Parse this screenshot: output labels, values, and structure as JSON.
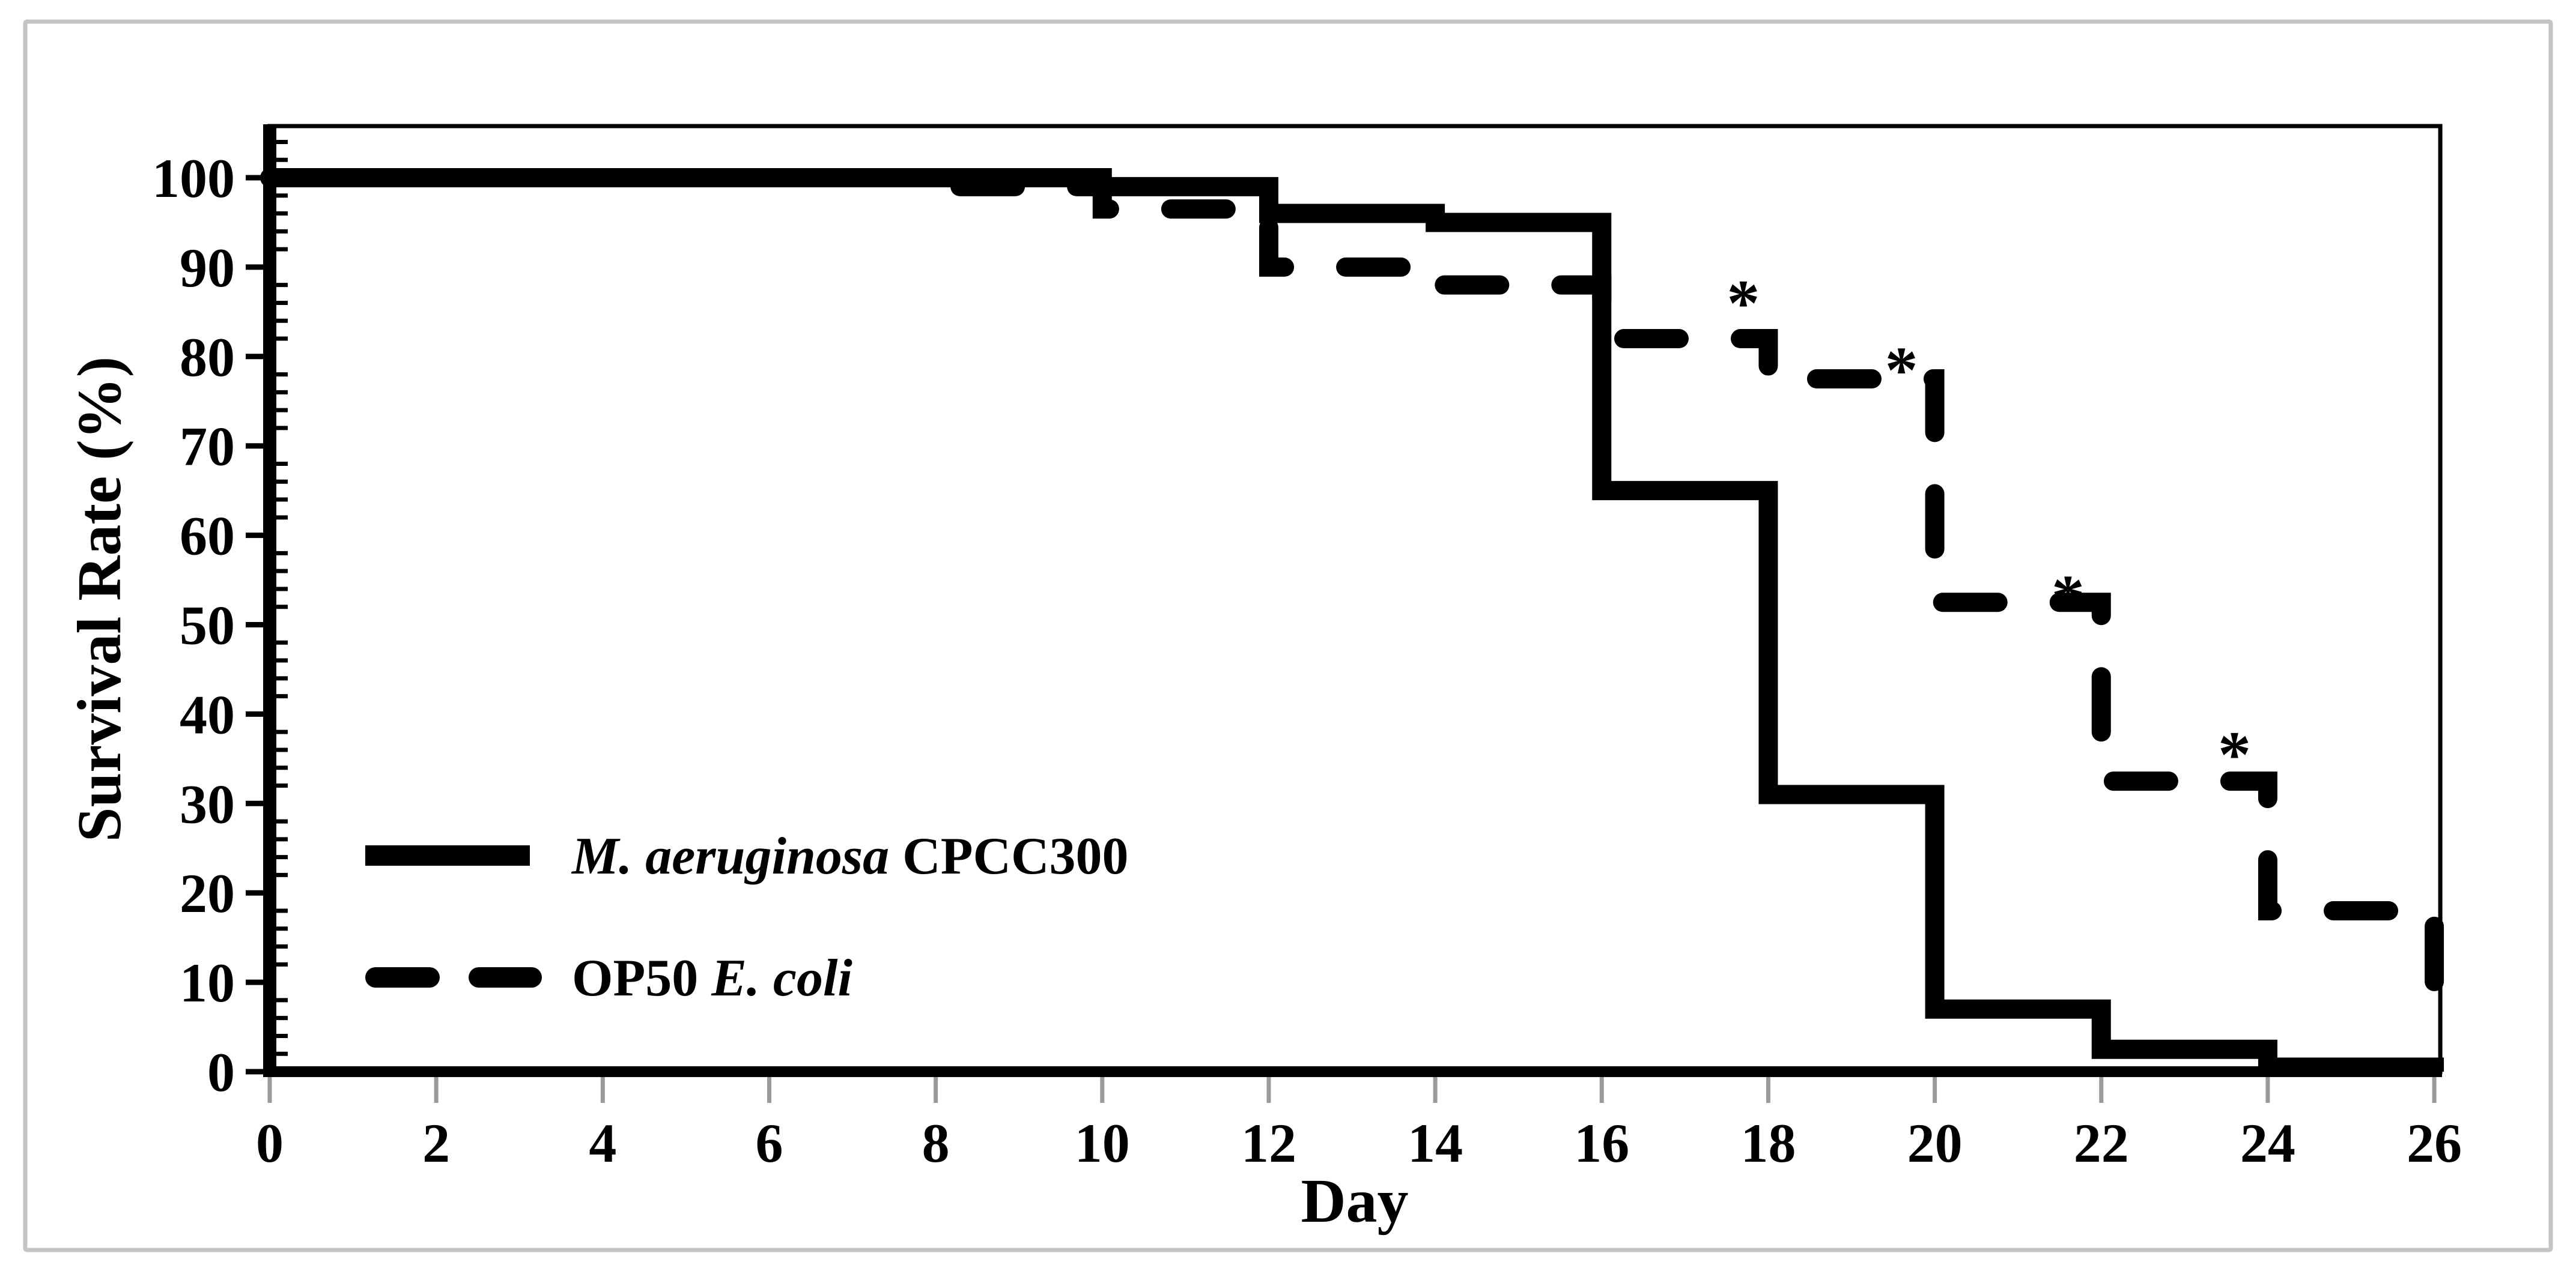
{
  "figure": {
    "background": "#ffffff",
    "border_color": "#c4c4c4",
    "axis_color": "#000000",
    "x_tick_color": "#9a9a9a"
  },
  "chart_data": {
    "type": "line",
    "subtype": "kaplan-meier-step-survival",
    "title": "",
    "xlabel": "Day",
    "ylabel": "Survival Rate (%)",
    "xlim": [
      0,
      26
    ],
    "ylim": [
      0,
      106
    ],
    "grid": false,
    "legend_position": "lower-left-inside",
    "x_ticks": [
      0,
      2,
      4,
      6,
      8,
      10,
      12,
      14,
      16,
      18,
      20,
      22,
      24,
      26
    ],
    "y_ticks": [
      0,
      10,
      20,
      30,
      40,
      50,
      60,
      70,
      80,
      90,
      100
    ],
    "y_minor_tick_step": 2,
    "series": [
      {
        "name": "M. aeruginosa CPCC300",
        "label_parts": [
          {
            "text": "M. aeruginosa",
            "italic": true
          },
          {
            "text": " CPCC300",
            "italic": false
          }
        ],
        "line_style": "solid",
        "color": "#000000",
        "steps": [
          [
            0,
            100
          ],
          [
            10,
            99
          ],
          [
            12,
            96
          ],
          [
            14,
            95
          ],
          [
            16,
            65
          ],
          [
            18,
            31
          ],
          [
            20,
            7
          ],
          [
            22,
            2.5
          ],
          [
            24,
            0.5
          ],
          [
            26,
            0
          ]
        ]
      },
      {
        "name": "OP50 E. coli",
        "label_parts": [
          {
            "text": "OP50 ",
            "italic": false
          },
          {
            "text": "E. coli",
            "italic": true
          }
        ],
        "line_style": "dashed",
        "color": "#000000",
        "steps": [
          [
            0,
            100
          ],
          [
            8,
            99
          ],
          [
            10,
            96.5
          ],
          [
            12,
            90
          ],
          [
            14,
            88
          ],
          [
            16,
            82
          ],
          [
            18,
            77.5
          ],
          [
            20,
            52.5
          ],
          [
            22,
            32.5
          ],
          [
            24,
            18
          ],
          [
            26,
            6
          ]
        ]
      }
    ],
    "annotations": [
      {
        "symbol": "*",
        "day": 17.7,
        "value": 87
      },
      {
        "symbol": "*",
        "day": 19.6,
        "value": 79.5
      },
      {
        "symbol": "*",
        "day": 21.6,
        "value": 54
      },
      {
        "symbol": "*",
        "day": 23.6,
        "value": 36.5
      }
    ]
  }
}
